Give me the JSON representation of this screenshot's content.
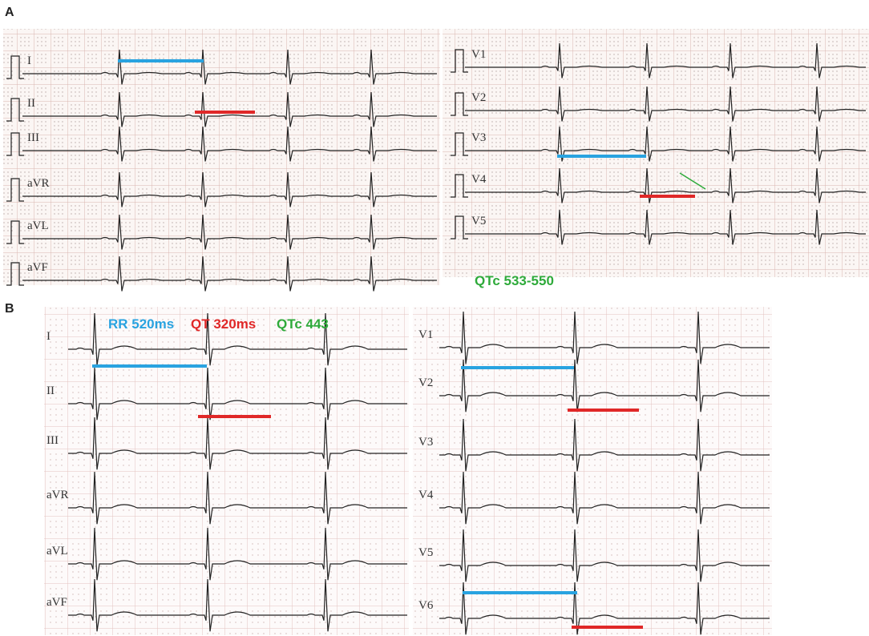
{
  "panels": [
    {
      "label": "A",
      "leads_left": [
        "I",
        "II",
        "III",
        "aVR",
        "aVL",
        "aVF"
      ],
      "leads_right": [
        "V1",
        "V2",
        "V3",
        "V4",
        "V5"
      ],
      "annotations": {
        "qtc": "QTc 533-550"
      }
    },
    {
      "label": "B",
      "leads_left": [
        "I",
        "II",
        "III",
        "aVR",
        "aVL",
        "aVF"
      ],
      "leads_right": [
        "V1",
        "V2",
        "V3",
        "V4",
        "V5",
        "V6"
      ],
      "annotations": {
        "rr": "RR 520ms",
        "qt": "QT 320ms",
        "qtc": "QTc 443"
      }
    }
  ]
}
